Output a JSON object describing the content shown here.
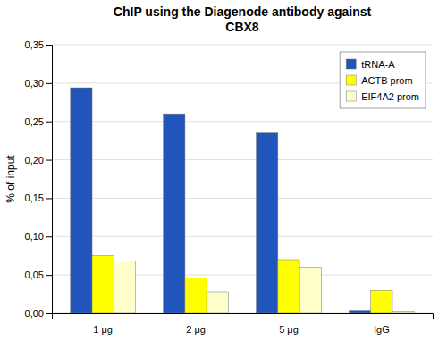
{
  "chart_data": {
    "type": "bar",
    "title": "ChIP using the Diagenode antibody against\nCBX8",
    "y_label": "% of input",
    "categories": [
      "1 μg",
      "2 μg",
      "5 μg",
      "IgG"
    ],
    "series": [
      {
        "name": "tRNA-A",
        "color": "#2255BB",
        "values": [
          0.294,
          0.26,
          0.236,
          0.004
        ]
      },
      {
        "name": "ACTB prom",
        "color": "#FFFF00",
        "values": [
          0.075,
          0.046,
          0.07,
          0.03
        ]
      },
      {
        "name": "EIF4A2 prom",
        "color": "#FFFFCC",
        "values": [
          0.068,
          0.028,
          0.06,
          0.003
        ]
      }
    ],
    "ylim": [
      0,
      0.35
    ],
    "yticks": [
      {
        "value": 0.0,
        "label": "0,00"
      },
      {
        "value": 0.05,
        "label": "0,05"
      },
      {
        "value": 0.1,
        "label": "0,10"
      },
      {
        "value": 0.15,
        "label": "0,15"
      },
      {
        "value": 0.2,
        "label": "0,20"
      },
      {
        "value": 0.25,
        "label": "0,25"
      },
      {
        "value": 0.3,
        "label": "0,30"
      },
      {
        "value": 0.35,
        "label": "0,35"
      }
    ],
    "grid": true,
    "legend": "top-right"
  }
}
